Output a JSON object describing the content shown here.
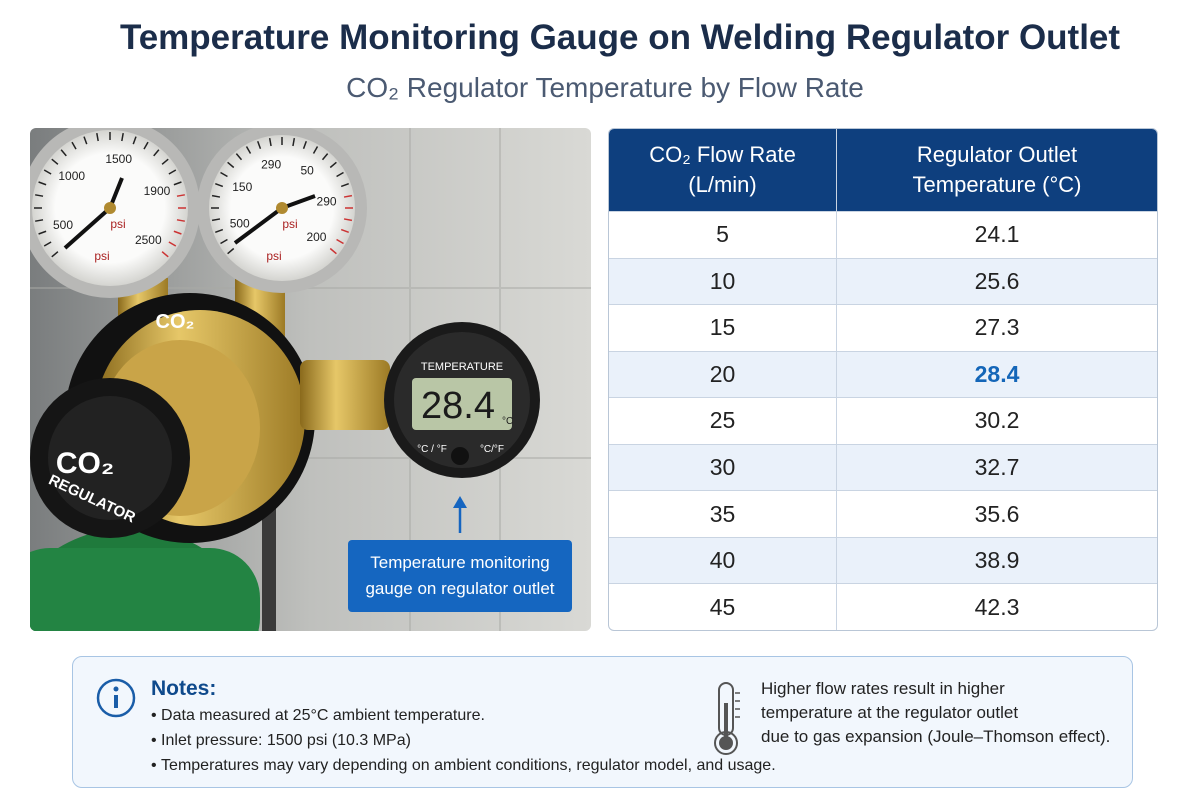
{
  "header": {
    "title": "Temperature Monitoring Gauge on Welding Regulator Outlet",
    "subtitle": "CO₂ Regulator Temperature by Flow Rate"
  },
  "photo": {
    "gauge_left": [
      "500",
      "1000",
      "1500",
      "1900",
      "2500",
      "psi",
      "psi"
    ],
    "gauge_right": [
      "500",
      "150",
      "290",
      "50",
      "290",
      "200",
      "psi",
      "psi"
    ],
    "body_label": "CO₂",
    "knob_label": "CO₂",
    "knob_ring": "REGULATOR",
    "display_title": "TEMPERATURE",
    "display_value": "28.4",
    "display_unit": "°C",
    "display_left": "°C / °F",
    "display_right": "°C/°F",
    "callout": [
      "Temperature monitoring",
      "gauge on regulator outlet"
    ]
  },
  "table": {
    "columns": [
      "CO₂ Flow Rate (L/min)",
      "Regulator Outlet Temperature (°C)"
    ],
    "rows": [
      [
        "5",
        "24.1"
      ],
      [
        "10",
        "25.6"
      ],
      [
        "15",
        "27.3"
      ],
      [
        "20",
        "28.4"
      ],
      [
        "25",
        "30.2"
      ],
      [
        "30",
        "32.7"
      ],
      [
        "35",
        "35.6"
      ],
      [
        "40",
        "38.9"
      ],
      [
        "45",
        "42.3"
      ]
    ],
    "highlighted_row": 3
  },
  "notes": {
    "title": "Notes:",
    "items": [
      "Data measured at 25°C ambient temperature.",
      "Inlet pressure: 1500 psi (10.3 MPa)",
      "Temperatures may vary depending on ambient conditions, regulator model, and usage."
    ],
    "side": [
      "Higher flow rates result in higher",
      "temperature at the regulator outlet",
      "due to gas expansion (Joule–Thomson effect)."
    ]
  }
}
